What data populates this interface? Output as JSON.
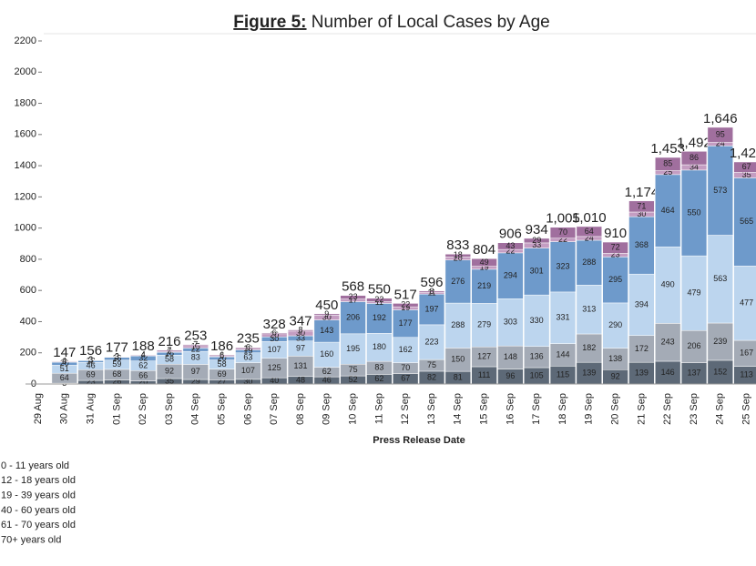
{
  "chart_data": {
    "type": "stacked_bar",
    "title_lead": "Figure 5:",
    "title": "Number of Local Cases by Age",
    "x_label": "Press Release Date",
    "categories": [
      "29 Aug",
      "30 Aug",
      "31 Aug",
      "01 Sep",
      "02 Sep",
      "03 Sep",
      "04 Sep",
      "05 Sep",
      "06 Sep",
      "07 Sep",
      "08 Sep",
      "09 Sep",
      "10 Sep",
      "11 Sep",
      "12 Sep",
      "13 Sep",
      "14 Sep",
      "15 Sep",
      "16 Sep",
      "17 Sep",
      "18 Sep",
      "19 Sep",
      "20 Sep",
      "21 Sep",
      "22 Sep",
      "23 Sep",
      "24 Sep",
      "25 Sep"
    ],
    "series": [
      {
        "name": "0 - 11 years old",
        "color": "#5d6977",
        "values": [
          null,
          5,
          23,
          26,
          20,
          35,
          29,
          27,
          30,
          40,
          48,
          46,
          52,
          62,
          67,
          82,
          81,
          111,
          96,
          105,
          115,
          139,
          92,
          139,
          146,
          137,
          152,
          113
        ]
      },
      {
        "name": "12 - 18 years old",
        "color": "#a4abb6",
        "values": [
          null,
          64,
          69,
          68,
          66,
          92,
          97,
          69,
          107,
          125,
          131,
          62,
          75,
          83,
          70,
          75,
          150,
          127,
          148,
          136,
          144,
          182,
          138,
          172,
          243,
          206,
          239,
          167
        ]
      },
      {
        "name": "19 - 39 years old",
        "color": "#bcd5ee",
        "values": [
          null,
          51,
          46,
          59,
          62,
          58,
          83,
          58,
          63,
          107,
          97,
          160,
          195,
          180,
          162,
          223,
          288,
          279,
          303,
          330,
          331,
          313,
          290,
          394,
          490,
          479,
          563,
          477
        ]
      },
      {
        "name": "40 - 60 years old",
        "color": "#6e9acb",
        "values": [
          null,
          20,
          12,
          18,
          32,
          18,
          22,
          20,
          19,
          30,
          33,
          143,
          206,
          192,
          177,
          197,
          276,
          219,
          294,
          301,
          323,
          288,
          295,
          368,
          464,
          550,
          573,
          565
        ]
      },
      {
        "name": "61 - 70 years old",
        "color": "#c49dc2",
        "values": [
          null,
          3,
          3,
          3,
          4,
          6,
          15,
          6,
          10,
          20,
          30,
          30,
          17,
          11,
          19,
          11,
          20,
          19,
          22,
          33,
          22,
          24,
          23,
          30,
          25,
          34,
          24,
          35
        ]
      },
      {
        "name": "70+ years old",
        "color": "#a06f9e",
        "values": [
          null,
          4,
          3,
          3,
          4,
          7,
          7,
          6,
          6,
          6,
          8,
          9,
          23,
          22,
          22,
          8,
          18,
          49,
          43,
          29,
          70,
          64,
          72,
          71,
          85,
          86,
          95,
          67
        ]
      }
    ],
    "totals": [
      null,
      147,
      156,
      177,
      188,
      216,
      253,
      186,
      235,
      328,
      347,
      450,
      568,
      550,
      517,
      596,
      833,
      804,
      906,
      934,
      1005,
      1010,
      910,
      1174,
      1453,
      1492,
      1646,
      1424
    ],
    "totals_labels": [
      null,
      "147",
      "156",
      "177",
      "188",
      "216",
      "253",
      "186",
      "235",
      "328",
      "347",
      "450",
      "568",
      "550",
      "517",
      "596",
      "833",
      "804",
      "906",
      "934",
      "1,005",
      "1,010",
      "910",
      "1,174",
      "1,453",
      "1,492",
      "1,646",
      "1,424"
    ],
    "ylim": [
      0,
      2200
    ],
    "yticks": [
      0,
      200,
      400,
      600,
      800,
      1000,
      1200,
      1400,
      1600,
      1800,
      2000,
      2200
    ]
  }
}
